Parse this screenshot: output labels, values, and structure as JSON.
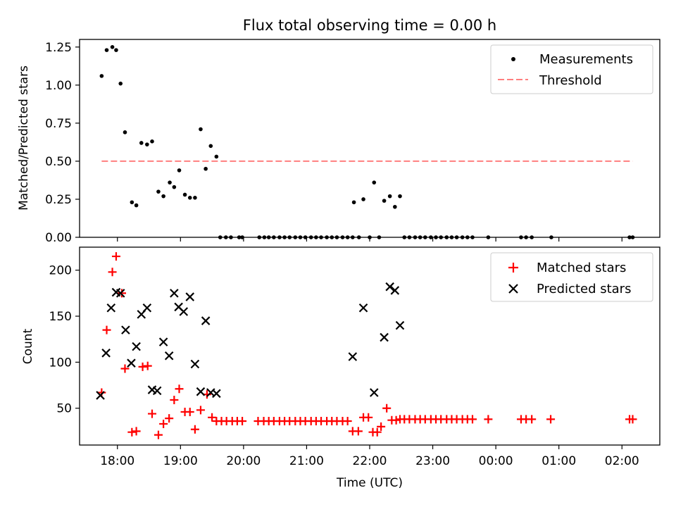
{
  "chart_data": [
    {
      "type": "scatter",
      "title": "Flux total observing time = 0.00 h",
      "ylabel": "Matched/Predicted stars",
      "xlim": [
        17.4,
        26.6
      ],
      "ylim": [
        0,
        1.3
      ],
      "yticks": [
        0.0,
        0.25,
        0.5,
        0.75,
        1.0,
        1.25
      ],
      "ytick_labels": [
        "0.00",
        "0.25",
        "0.50",
        "0.75",
        "1.00",
        "1.25"
      ],
      "legend": {
        "placement": "top-right",
        "entries": [
          "Measurements",
          "Threshold"
        ]
      },
      "series": [
        {
          "name": "Measurements",
          "marker": "dot",
          "color": "#000000",
          "points": [
            [
              17.75,
              1.06
            ],
            [
              17.83,
              1.23
            ],
            [
              17.92,
              1.25
            ],
            [
              17.98,
              1.23
            ],
            [
              18.05,
              1.01
            ],
            [
              18.12,
              0.69
            ],
            [
              18.23,
              0.23
            ],
            [
              18.3,
              0.21
            ],
            [
              18.38,
              0.62
            ],
            [
              18.47,
              0.61
            ],
            [
              18.55,
              0.63
            ],
            [
              18.65,
              0.3
            ],
            [
              18.73,
              0.27
            ],
            [
              18.83,
              0.36
            ],
            [
              18.9,
              0.33
            ],
            [
              18.98,
              0.44
            ],
            [
              19.07,
              0.28
            ],
            [
              19.15,
              0.26
            ],
            [
              19.23,
              0.26
            ],
            [
              19.32,
              0.71
            ],
            [
              19.4,
              0.45
            ],
            [
              19.48,
              0.6
            ],
            [
              19.57,
              0.53
            ],
            [
              19.63,
              0
            ],
            [
              19.72,
              0
            ],
            [
              19.8,
              0
            ],
            [
              19.93,
              0
            ],
            [
              19.98,
              0
            ],
            [
              20.25,
              0
            ],
            [
              20.33,
              0
            ],
            [
              20.4,
              0
            ],
            [
              20.48,
              0
            ],
            [
              20.57,
              0
            ],
            [
              20.65,
              0
            ],
            [
              20.73,
              0
            ],
            [
              20.82,
              0
            ],
            [
              20.9,
              0
            ],
            [
              20.98,
              0
            ],
            [
              21.07,
              0
            ],
            [
              21.15,
              0
            ],
            [
              21.23,
              0
            ],
            [
              21.32,
              0
            ],
            [
              21.4,
              0
            ],
            [
              21.48,
              0
            ],
            [
              21.57,
              0
            ],
            [
              21.65,
              0
            ],
            [
              21.73,
              0
            ],
            [
              21.75,
              0.23
            ],
            [
              21.83,
              0
            ],
            [
              21.9,
              0.25
            ],
            [
              22.0,
              0
            ],
            [
              22.07,
              0.36
            ],
            [
              22.15,
              0
            ],
            [
              22.23,
              0.24
            ],
            [
              22.32,
              0.27
            ],
            [
              22.4,
              0.2
            ],
            [
              22.48,
              0.27
            ],
            [
              22.55,
              0
            ],
            [
              22.63,
              0
            ],
            [
              22.72,
              0
            ],
            [
              22.8,
              0
            ],
            [
              22.88,
              0
            ],
            [
              22.97,
              0
            ],
            [
              23.05,
              0
            ],
            [
              23.13,
              0
            ],
            [
              23.22,
              0
            ],
            [
              23.3,
              0
            ],
            [
              23.38,
              0
            ],
            [
              23.47,
              0
            ],
            [
              23.55,
              0
            ],
            [
              23.63,
              0
            ],
            [
              23.88,
              0
            ],
            [
              24.4,
              0
            ],
            [
              24.48,
              0
            ],
            [
              24.57,
              0
            ],
            [
              24.88,
              0
            ],
            [
              26.12,
              0
            ],
            [
              26.17,
              0
            ]
          ]
        },
        {
          "name": "Threshold",
          "line": "dashed",
          "color": "#ff7f7f",
          "points": [
            [
              17.75,
              0.5
            ],
            [
              26.17,
              0.5
            ]
          ]
        }
      ]
    },
    {
      "type": "scatter",
      "xlabel": "Time (UTC)",
      "ylabel": "Count",
      "xlim": [
        17.4,
        26.6
      ],
      "ylim": [
        10,
        225
      ],
      "xticks": [
        18,
        19,
        20,
        21,
        22,
        23,
        24,
        25,
        26
      ],
      "xtick_labels": [
        "18:00",
        "19:00",
        "20:00",
        "21:00",
        "22:00",
        "23:00",
        "00:00",
        "01:00",
        "02:00"
      ],
      "yticks": [
        50,
        100,
        150,
        200
      ],
      "ytick_labels": [
        "50",
        "100",
        "150",
        "200"
      ],
      "legend": {
        "placement": "top-right",
        "entries": [
          "Matched stars",
          "Predicted stars"
        ]
      },
      "series": [
        {
          "name": "Matched stars",
          "marker": "plus",
          "color": "#ff0000",
          "points": [
            [
              17.75,
              67
            ],
            [
              17.83,
              135
            ],
            [
              17.92,
              198
            ],
            [
              17.98,
              215
            ],
            [
              18.07,
              175
            ],
            [
              18.12,
              93
            ],
            [
              18.23,
              24
            ],
            [
              18.3,
              25
            ],
            [
              18.4,
              95
            ],
            [
              18.48,
              96
            ],
            [
              18.55,
              44
            ],
            [
              18.65,
              21
            ],
            [
              18.73,
              33
            ],
            [
              18.82,
              39
            ],
            [
              18.9,
              59
            ],
            [
              18.98,
              71
            ],
            [
              19.07,
              46
            ],
            [
              19.15,
              46
            ],
            [
              19.23,
              27
            ],
            [
              19.32,
              48
            ],
            [
              19.42,
              65
            ],
            [
              19.5,
              40
            ],
            [
              19.57,
              36
            ],
            [
              19.65,
              36
            ],
            [
              19.73,
              36
            ],
            [
              19.82,
              36
            ],
            [
              19.9,
              36
            ],
            [
              19.98,
              36
            ],
            [
              20.23,
              36
            ],
            [
              20.32,
              36
            ],
            [
              20.4,
              36
            ],
            [
              20.48,
              36
            ],
            [
              20.57,
              36
            ],
            [
              20.65,
              36
            ],
            [
              20.73,
              36
            ],
            [
              20.82,
              36
            ],
            [
              20.9,
              36
            ],
            [
              20.98,
              36
            ],
            [
              21.07,
              36
            ],
            [
              21.15,
              36
            ],
            [
              21.23,
              36
            ],
            [
              21.32,
              36
            ],
            [
              21.4,
              36
            ],
            [
              21.48,
              36
            ],
            [
              21.57,
              36
            ],
            [
              21.65,
              36
            ],
            [
              21.73,
              25
            ],
            [
              21.82,
              25
            ],
            [
              21.9,
              40
            ],
            [
              21.98,
              40
            ],
            [
              22.05,
              24
            ],
            [
              22.12,
              24
            ],
            [
              22.18,
              30
            ],
            [
              22.27,
              50
            ],
            [
              22.35,
              37
            ],
            [
              22.42,
              37
            ],
            [
              22.48,
              38
            ],
            [
              22.55,
              38
            ],
            [
              22.63,
              38
            ],
            [
              22.72,
              38
            ],
            [
              22.8,
              38
            ],
            [
              22.88,
              38
            ],
            [
              22.97,
              38
            ],
            [
              23.05,
              38
            ],
            [
              23.13,
              38
            ],
            [
              23.22,
              38
            ],
            [
              23.3,
              38
            ],
            [
              23.38,
              38
            ],
            [
              23.47,
              38
            ],
            [
              23.55,
              38
            ],
            [
              23.63,
              38
            ],
            [
              23.88,
              38
            ],
            [
              24.4,
              38
            ],
            [
              24.48,
              38
            ],
            [
              24.57,
              38
            ],
            [
              24.87,
              38
            ],
            [
              26.12,
              38
            ],
            [
              26.17,
              38
            ]
          ]
        },
        {
          "name": "Predicted stars",
          "marker": "x",
          "color": "#000000",
          "points": [
            [
              17.73,
              64
            ],
            [
              17.82,
              110
            ],
            [
              17.9,
              159
            ],
            [
              17.98,
              176
            ],
            [
              18.05,
              175
            ],
            [
              18.13,
              135
            ],
            [
              18.22,
              99
            ],
            [
              18.3,
              117
            ],
            [
              18.38,
              152
            ],
            [
              18.47,
              159
            ],
            [
              18.55,
              70
            ],
            [
              18.63,
              69
            ],
            [
              18.73,
              122
            ],
            [
              18.82,
              107
            ],
            [
              18.9,
              175
            ],
            [
              18.97,
              160
            ],
            [
              19.05,
              155
            ],
            [
              19.15,
              171
            ],
            [
              19.23,
              98
            ],
            [
              19.32,
              68
            ],
            [
              19.4,
              145
            ],
            [
              19.48,
              67
            ],
            [
              19.57,
              66
            ],
            [
              21.73,
              106
            ],
            [
              21.9,
              159
            ],
            [
              22.07,
              67
            ],
            [
              22.23,
              127
            ],
            [
              22.32,
              182
            ],
            [
              22.4,
              178
            ],
            [
              22.48,
              140
            ]
          ]
        }
      ]
    }
  ]
}
